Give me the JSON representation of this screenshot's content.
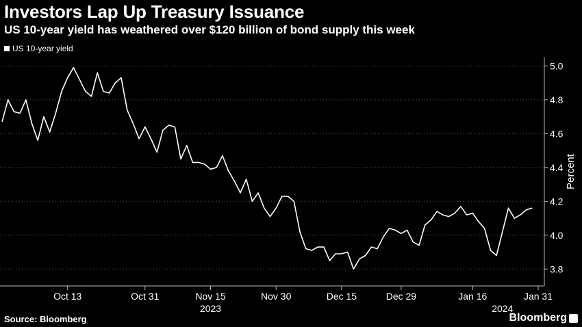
{
  "header": {
    "title": "Investors Lap Up Treasury Issuance",
    "subtitle": "US 10-year yield has weathered over $120 billion of bond supply this week"
  },
  "legend": {
    "label": "US 10-year yield",
    "swatch_color": "#ffffff"
  },
  "footer": {
    "source": "Source: Bloomberg",
    "brand": "Bloomberg"
  },
  "colors": {
    "background": "#000000",
    "line": "#ffffff",
    "grid": "#5a5a5a",
    "text": "#ffffff"
  },
  "chart_data": {
    "type": "line",
    "title": "Investors Lap Up Treasury Issuance",
    "subtitle": "US 10-year yield has weathered over $120 billion of bond supply this week",
    "ylabel": "Percent",
    "xlabel": "",
    "ylim": [
      3.7,
      5.05
    ],
    "yticks": [
      3.8,
      4.0,
      4.2,
      4.4,
      4.6,
      4.8,
      5.0
    ],
    "y_axis_position": "right",
    "grid": "horizontal-dotted",
    "legend_placement": "top-left",
    "x_tick_labels": [
      "Oct 13",
      "Oct 31",
      "Nov 15",
      "Nov 30",
      "Dec 15",
      "Dec 29",
      "Jan 16",
      "Jan 31"
    ],
    "x_tick_index": [
      11,
      24,
      35,
      46,
      57,
      67,
      79,
      90
    ],
    "year_labels": [
      {
        "label": "2023",
        "index": 35
      },
      {
        "label": "2024",
        "index": 84
      }
    ],
    "series": [
      {
        "name": "US 10-year yield",
        "values": [
          4.67,
          4.8,
          4.73,
          4.72,
          4.8,
          4.66,
          4.56,
          4.7,
          4.61,
          4.72,
          4.85,
          4.93,
          4.99,
          4.92,
          4.85,
          4.82,
          4.96,
          4.85,
          4.84,
          4.9,
          4.93,
          4.74,
          4.66,
          4.57,
          4.64,
          4.57,
          4.49,
          4.62,
          4.65,
          4.64,
          4.45,
          4.53,
          4.43,
          4.43,
          4.42,
          4.39,
          4.4,
          4.47,
          4.38,
          4.32,
          4.25,
          4.33,
          4.2,
          4.25,
          4.16,
          4.11,
          4.16,
          4.23,
          4.23,
          4.2,
          4.02,
          3.92,
          3.91,
          3.93,
          3.93,
          3.85,
          3.89,
          3.89,
          3.9,
          3.8,
          3.86,
          3.88,
          3.93,
          3.92,
          3.99,
          4.04,
          4.03,
          4.01,
          4.03,
          3.96,
          3.94,
          4.06,
          4.09,
          4.14,
          4.12,
          4.11,
          4.13,
          4.17,
          4.12,
          4.13,
          4.08,
          4.04,
          3.91,
          3.88,
          4.02,
          4.16,
          4.1,
          4.12,
          4.15,
          4.16
        ]
      }
    ]
  }
}
